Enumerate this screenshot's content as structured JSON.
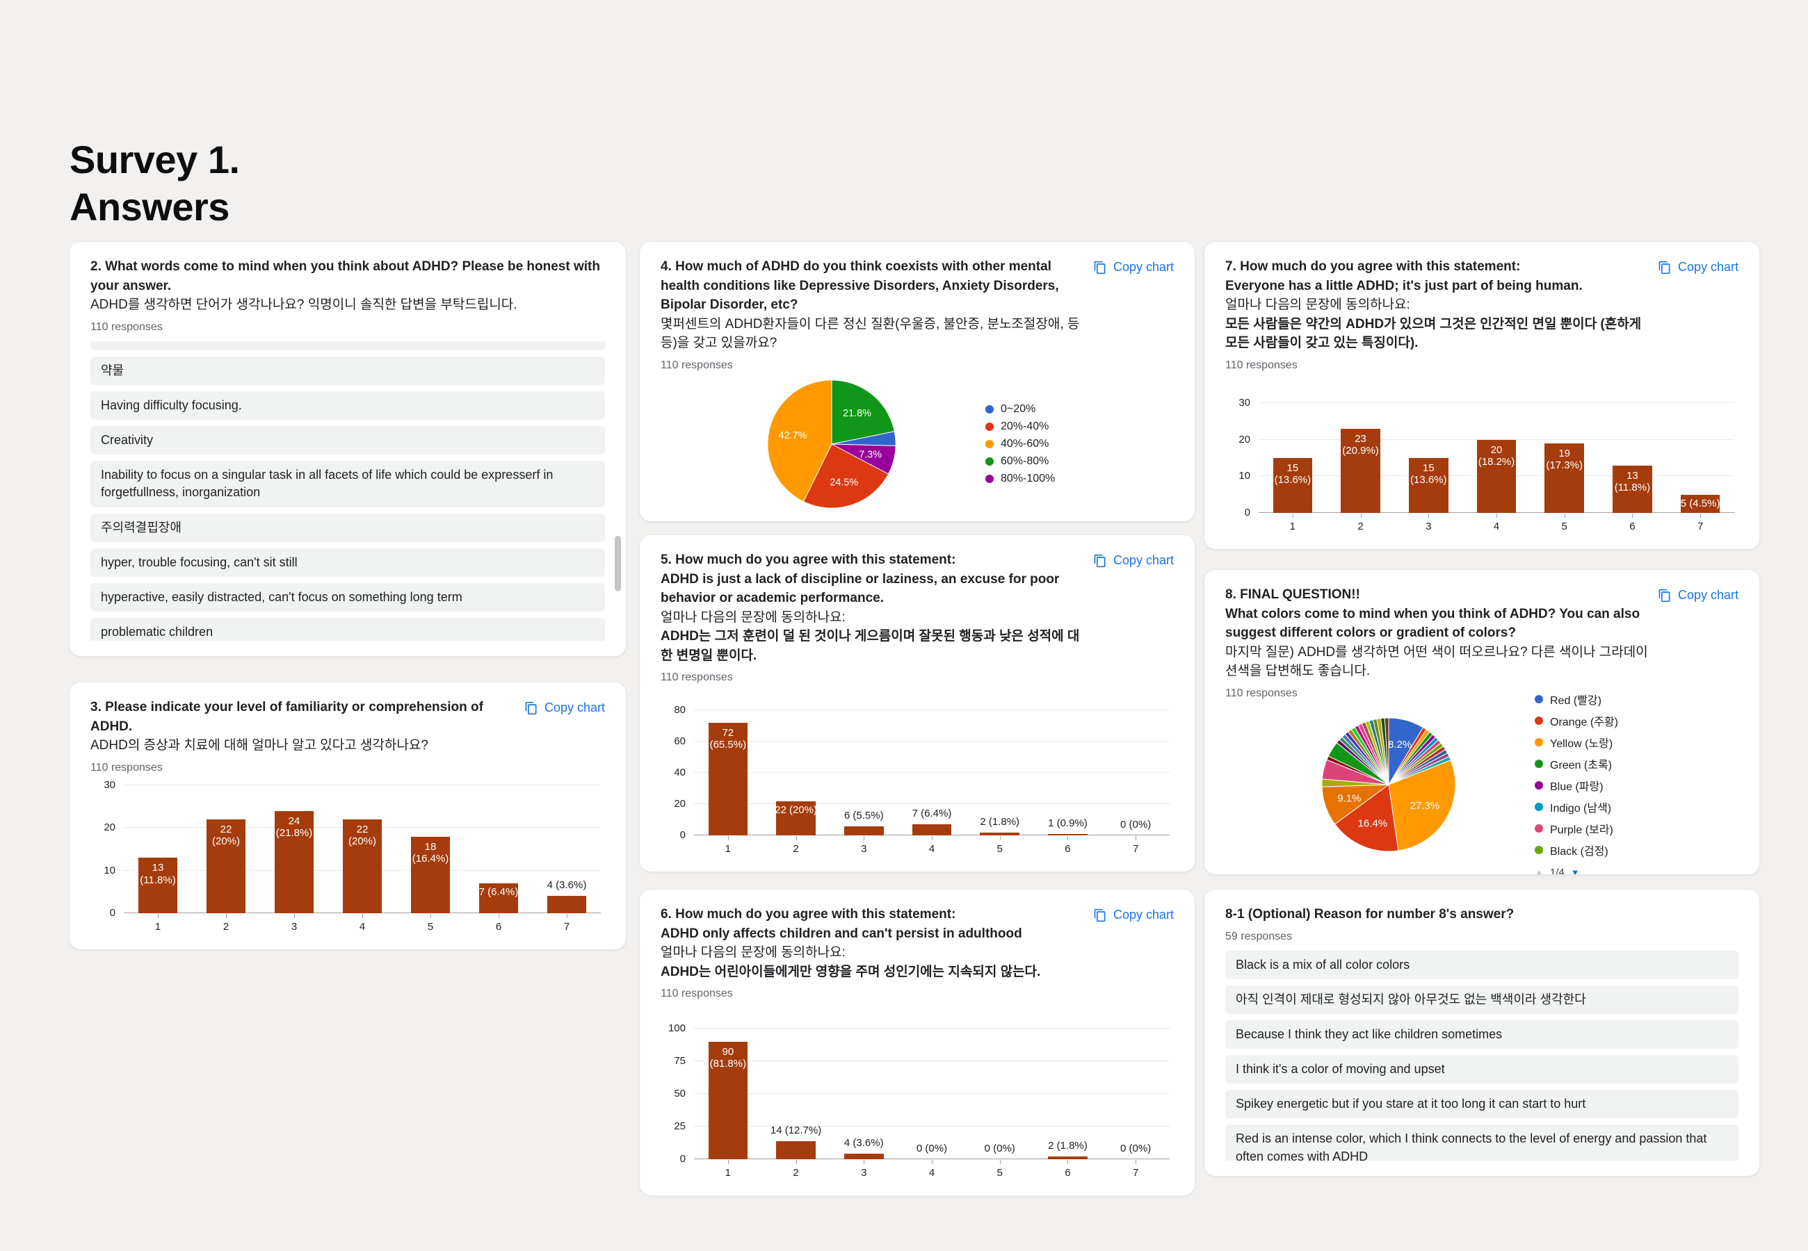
{
  "page": {
    "title_line1": "Survey 1.",
    "title_line2": "Answers"
  },
  "labels": {
    "copy_chart": "Copy chart"
  },
  "colors": {
    "bar": "#a53c0d",
    "link": "#1a73e8"
  },
  "cards": {
    "q2": {
      "title": "2. What words come to mind when you think about ADHD? Please be honest with your answer.",
      "subtitle": "ADHD를 생각하면 단어가 생각나나요? 익명이니 솔직한 답변을 부탁드립니다.",
      "responses": "110 responses",
      "answers": [
        "약물",
        "Having difficulty focusing.",
        "Creativity",
        "Inability to focus on a singular task in all facets of life which could be expresserf in forgetfullness, inorganization",
        "주의력결핍장애",
        "hyper, trouble focusing, can't sit still",
        "hyperactive, easily distracted, can't focus on something long term",
        "problematic children"
      ]
    },
    "q3": {
      "title": "3. Please indicate your level of familiarity or comprehension of ADHD.",
      "subtitle": "ADHD의 증상과 치료에 대해 얼마나 알고 있다고 생각하나요?",
      "responses": "110 responses",
      "chart": {
        "type": "bar",
        "categories": [
          "1",
          "2",
          "3",
          "4",
          "5",
          "6",
          "7"
        ],
        "values": [
          13,
          22,
          24,
          22,
          18,
          7,
          4
        ],
        "labels": [
          "13 (11.8%)",
          "22 (20%)",
          "24 (21.8%)",
          "22 (20%)",
          "18 (16.4%)",
          "7 (6.4%)",
          "4 (3.6%)"
        ],
        "ymax": 30,
        "yticks": [
          0,
          10,
          20,
          30
        ]
      }
    },
    "q4": {
      "title": "4. How much of ADHD do you think coexists with other mental health conditions like Depressive Disorders, Anxiety Disorders, Bipolar Disorder, etc?",
      "subtitle": "몇퍼센트의 ADHD환자들이 다른 정신 질환(우울증, 불안증, 분노조절장애, 등등)을 갖고 있을까요?",
      "responses": "110 responses",
      "chart": {
        "type": "pie",
        "slices": [
          {
            "v": 21.8,
            "color": "#109618",
            "label": "21.8%"
          },
          {
            "v": 3.6,
            "color": "#3366cc"
          },
          {
            "v": 7.3,
            "color": "#990099",
            "label": "7.3%"
          },
          {
            "v": 24.5,
            "color": "#dc3912",
            "label": "24.5%"
          },
          {
            "v": 42.7,
            "color": "#ff9900",
            "label": "42.7%"
          }
        ]
      },
      "legend": [
        {
          "label": "0~20%",
          "color": "#3366cc"
        },
        {
          "label": "20%-40%",
          "color": "#dc3912"
        },
        {
          "label": "40%-60%",
          "color": "#ff9900"
        },
        {
          "label": "60%-80%",
          "color": "#109618"
        },
        {
          "label": "80%-100%",
          "color": "#990099"
        }
      ]
    },
    "q5": {
      "title": "5. How much do you agree with this statement:",
      "statement": "ADHD is just a lack of discipline or laziness, an excuse for poor behavior or academic performance.",
      "subtitle": "얼마나 다음의 문장에 동의하나요:",
      "statement_ko": "ADHD는 그저 훈련이 덜 된 것이나 게으름이며 잘못된 행동과 낮은 성적에 대한 변명일 뿐이다.",
      "responses": "110 responses",
      "chart": {
        "type": "bar",
        "categories": [
          "1",
          "2",
          "3",
          "4",
          "5",
          "6",
          "7"
        ],
        "values": [
          72,
          22,
          6,
          7,
          2,
          1,
          0
        ],
        "labels": [
          "72 (65.5%)",
          "22 (20%)",
          "6 (5.5%)",
          "7 (6.4%)",
          "2 (1.8%)",
          "1 (0.9%)",
          "0 (0%)"
        ],
        "ymax": 80,
        "yticks": [
          0,
          20,
          40,
          60,
          80
        ]
      }
    },
    "q6": {
      "title": "6. How much do you agree with this statement:",
      "statement": "ADHD only affects children and can't persist in adulthood",
      "subtitle": "얼마나 다음의 문장에 동의하나요:",
      "statement_ko": "ADHD는 어린아이들에게만 영향을 주며 성인기에는 지속되지 않는다.",
      "responses": "110 responses",
      "chart": {
        "type": "bar",
        "categories": [
          "1",
          "2",
          "3",
          "4",
          "5",
          "6",
          "7"
        ],
        "values": [
          90,
          14,
          4,
          0,
          0,
          2,
          0
        ],
        "labels": [
          "90 (81.8%)",
          "14 (12.7%)",
          "4 (3.6%)",
          "0 (0%)",
          "0 (0%)",
          "2 (1.8%)",
          "0 (0%)"
        ],
        "ymax": 100,
        "yticks": [
          0,
          25,
          50,
          75,
          100
        ]
      }
    },
    "q7": {
      "title": "7. How much do you agree with this statement:",
      "statement": "Everyone has a little ADHD; it's just part of being human.",
      "subtitle": "얼마나 다음의 문장에 동의하나요:",
      "statement_ko": "모든 사람들은 약간의 ADHD가 있으며 그것은 인간적인 면일 뿐이다 (흔하게 모든 사람들이 갖고 있는 특징이다).",
      "responses": "110 responses",
      "chart": {
        "type": "bar",
        "categories": [
          "1",
          "2",
          "3",
          "4",
          "5",
          "6",
          "7"
        ],
        "values": [
          15,
          23,
          15,
          20,
          19,
          13,
          5
        ],
        "labels": [
          "15 (13.6%)",
          "23 (20.9%)",
          "15 (13.6%)",
          "20 (18.2%)",
          "19 (17.3%)",
          "13 (11.8%)",
          "5 (4.5%)"
        ],
        "ymax": 30,
        "yticks": [
          0,
          10,
          20,
          30
        ]
      }
    },
    "q8": {
      "title": "8. FINAL QUESTION!!",
      "statement": "What colors come to mind when you think of ADHD? You can also suggest different colors or gradient of colors?",
      "subtitle": "마지막 질문) ADHD를 생각하면 어떤 색이 떠오르나요? 다른 색이나 그라데이션색을 답변해도 좋습니다.",
      "responses": "110 responses",
      "chart": {
        "type": "pie",
        "slices": [
          {
            "v": 8.2,
            "color": "#3366cc",
            "label": "8.2%"
          },
          {
            "v": 0.9,
            "color": "#dc3912"
          },
          {
            "v": 0.9,
            "color": "#ff9900"
          },
          {
            "v": 0.9,
            "color": "#109618"
          },
          {
            "v": 0.9,
            "color": "#990099"
          },
          {
            "v": 0.9,
            "color": "#0099c6"
          },
          {
            "v": 0.9,
            "color": "#dd4477"
          },
          {
            "v": 0.9,
            "color": "#66aa00"
          },
          {
            "v": 0.9,
            "color": "#b82e2e"
          },
          {
            "v": 0.9,
            "color": "#316395"
          },
          {
            "v": 0.9,
            "color": "#994499"
          },
          {
            "v": 0.9,
            "color": "#22aa99"
          },
          {
            "v": 27.3,
            "color": "#ff9900",
            "label": "27.3%"
          },
          {
            "v": 16.4,
            "color": "#dc3912",
            "label": "16.4%"
          },
          {
            "v": 9.1,
            "color": "#e67300",
            "label": "9.1%"
          },
          {
            "v": 1.8,
            "color": "#aaaa11"
          },
          {
            "v": 4.5,
            "color": "#dd4477"
          },
          {
            "v": 0.9,
            "color": "#8b0707"
          },
          {
            "v": 3.6,
            "color": "#109618"
          },
          {
            "v": 0.9,
            "color": "#651067"
          },
          {
            "v": 0.9,
            "color": "#329262"
          },
          {
            "v": 0.9,
            "color": "#5574a6"
          },
          {
            "v": 0.9,
            "color": "#3b3eac"
          },
          {
            "v": 0.9,
            "color": "#b77322"
          },
          {
            "v": 0.9,
            "color": "#16d620"
          },
          {
            "v": 0.9,
            "color": "#b91383"
          },
          {
            "v": 0.9,
            "color": "#f4359e"
          },
          {
            "v": 0.9,
            "color": "#9c5935"
          },
          {
            "v": 0.9,
            "color": "#a9c413"
          },
          {
            "v": 0.9,
            "color": "#2a778d"
          },
          {
            "v": 0.9,
            "color": "#668d1c"
          },
          {
            "v": 0.9,
            "color": "#bea413"
          },
          {
            "v": 0.9,
            "color": "#0c5922"
          },
          {
            "v": 0.9,
            "color": "#743411"
          }
        ]
      },
      "legend": [
        {
          "label": "Red (빨강)",
          "color": "#3366cc"
        },
        {
          "label": "Orange (주황)",
          "color": "#dc3912"
        },
        {
          "label": "Yellow (노랑)",
          "color": "#ff9900"
        },
        {
          "label": "Green (초록)",
          "color": "#109618"
        },
        {
          "label": "Blue (파랑)",
          "color": "#990099"
        },
        {
          "label": "Indigo (남색)",
          "color": "#0099c6"
        },
        {
          "label": "Purple (보라)",
          "color": "#dd4477"
        },
        {
          "label": "Black (검정)",
          "color": "#66aa00"
        }
      ],
      "pager": {
        "up": "▲",
        "label": "1/4",
        "down": "▼"
      }
    },
    "q81": {
      "title": "8-1 (Optional) Reason for number 8's answer?",
      "responses": "59 responses",
      "answers": [
        "Black is a mix of all color colors",
        "아직 인격이 제대로 형성되지 않아 아무것도 없는 백색이라 생각한다",
        "Because I think they act like children sometimes",
        "I think it's a color of moving and upset",
        "Spikey energetic but if you stare at it too long it can start to hurt",
        "Red is an intense color, which I think connects to the level of energy and passion that often comes with ADHD"
      ]
    }
  }
}
